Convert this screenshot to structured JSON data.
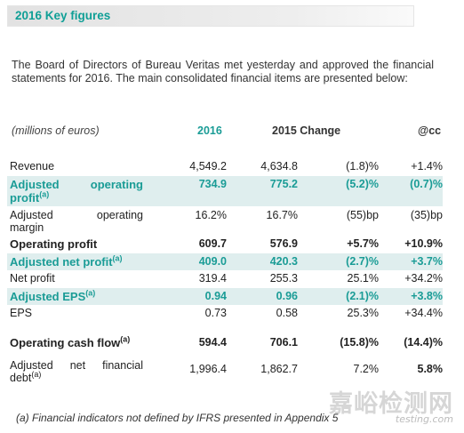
{
  "header": {
    "title": "2016 Key figures"
  },
  "intro": "The Board of Directors of Bureau Veritas met yesterday and approved the financial statements for 2016. The main consolidated financial items are presented below:",
  "table": {
    "col_label": "(millions of euros)",
    "col_2016": "2016",
    "col_2015_change": "2015 Change",
    "col_cc": "@cc",
    "rows": [
      {
        "label": "Revenue",
        "v2016": "4,549.2",
        "v2015": "4,634.8",
        "change": "(1.8)%",
        "cc": "+1.4%"
      },
      {
        "label_1": "Adjusted",
        "label_2": "operating",
        "label_3": "profit",
        "sup": "(a)",
        "v2016": "734.9",
        "v2015": "775.2",
        "change": "(5.2)%",
        "cc": "(0.7)%"
      },
      {
        "label_1": "Adjusted",
        "label_2": "operating",
        "label_3": "margin",
        "v2016": "16.2%",
        "v2015": "16.7%",
        "change": "(55)bp",
        "cc": "(35)bp"
      },
      {
        "label": "Operating profit",
        "v2016": "609.7",
        "v2015": "576.9",
        "change": "+5.7%",
        "cc": "+10.9%"
      },
      {
        "label": "Adjusted net profit",
        "sup": "(a)",
        "v2016": "409.0",
        "v2015": "420.3",
        "change": "(2.7)%",
        "cc": "+3.7%"
      },
      {
        "label": "Net profit",
        "v2016": "319.4",
        "v2015": "255.3",
        "change": "25.1%",
        "cc": "+34.2%"
      },
      {
        "label": "Adjusted EPS",
        "sup": "(a)",
        "v2016": "0.94",
        "v2015": "0.96",
        "change": "(2.1)%",
        "cc": "+3.8%"
      },
      {
        "label": "EPS",
        "v2016": "0.73",
        "v2015": "0.58",
        "change": "25.3%",
        "cc": "+34.4%"
      },
      {
        "label": "Operating cash flow",
        "sup": "(a)",
        "v2016": "594.4",
        "v2015": "706.1",
        "change": "(15.8)%",
        "cc": "(14.4)%"
      },
      {
        "label_1": "Adjusted",
        "label_2": "net",
        "label_3": "financial",
        "label_4": "debt",
        "sup": "(a)",
        "v2016": "1,996.4",
        "v2015": "1,862.7",
        "change": "7.2%",
        "cc": "5.8%"
      }
    ]
  },
  "footnote": "(a) Financial indicators not defined by IFRS presented in Appendix 5",
  "watermark": {
    "text": "嘉峪检测网",
    "url": "testing.com"
  }
}
